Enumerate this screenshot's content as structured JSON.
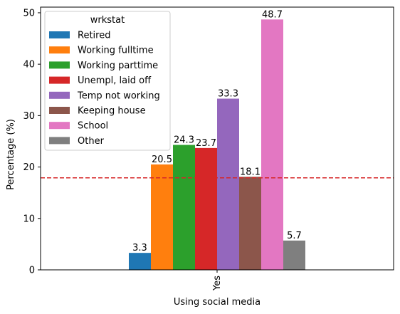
{
  "chart_data": {
    "type": "bar",
    "categories": [
      "Yes"
    ],
    "xlabel": "Using social media",
    "ylabel": "Percentage (%)",
    "ylim": [
      0,
      51.1
    ],
    "yticks": [
      0,
      10,
      20,
      30,
      40,
      50
    ],
    "reference_line": {
      "value": 17.9,
      "color": "#d62728",
      "style": "dashed"
    },
    "legend": {
      "title": "wrkstat",
      "placement": "top-left"
    },
    "grid": false,
    "series": [
      {
        "name": "Retired",
        "values": [
          3.3
        ],
        "label": "3.3",
        "color": "#1f77b4"
      },
      {
        "name": "Working fulltime",
        "values": [
          20.5
        ],
        "label": "20.5",
        "color": "#ff7f0e"
      },
      {
        "name": "Working parttime",
        "values": [
          24.3
        ],
        "label": "24.3",
        "color": "#2ca02c"
      },
      {
        "name": "Unempl, laid off",
        "values": [
          23.7
        ],
        "label": "23.7",
        "color": "#d62728"
      },
      {
        "name": "Temp not working",
        "values": [
          33.3
        ],
        "label": "33.3",
        "color": "#9467bd"
      },
      {
        "name": "Keeping house",
        "values": [
          18.1
        ],
        "label": "18.1",
        "color": "#8c564b"
      },
      {
        "name": "School",
        "values": [
          48.7
        ],
        "label": "48.7",
        "color": "#e377c2"
      },
      {
        "name": "Other",
        "values": [
          5.7
        ],
        "label": "5.7",
        "color": "#7f7f7f"
      }
    ]
  }
}
